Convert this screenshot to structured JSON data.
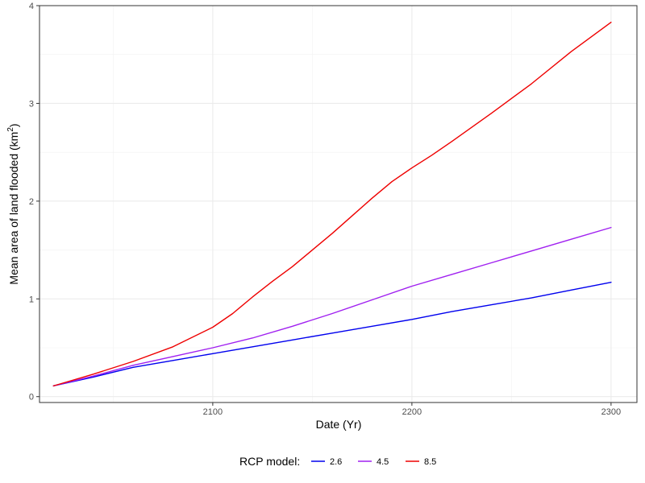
{
  "chart_data": {
    "type": "line",
    "title": "",
    "xlabel": "Date (Yr)",
    "ylabel": {
      "prefix": "Mean area of land flooded (km",
      "superscript": "2",
      "suffix": ")"
    },
    "xlim": [
      2013,
      2313
    ],
    "ylim": [
      -0.06,
      4.0
    ],
    "x_ticks": [
      2100,
      2200,
      2300
    ],
    "y_ticks": [
      0,
      1,
      2,
      3,
      4
    ],
    "x_tick_labels": [
      "2100",
      "2200",
      "2300"
    ],
    "y_tick_labels": [
      "0",
      "1",
      "2",
      "3",
      "4"
    ],
    "grid": true,
    "legend": {
      "title": "RCP model:",
      "position": "bottom"
    },
    "series": [
      {
        "name": "2.6",
        "color": "#0000ee",
        "x": [
          2020,
          2040,
          2060,
          2080,
          2100,
          2120,
          2140,
          2160,
          2180,
          2200,
          2220,
          2240,
          2260,
          2280,
          2300
        ],
        "y": [
          0.11,
          0.2,
          0.3,
          0.37,
          0.44,
          0.51,
          0.58,
          0.65,
          0.72,
          0.79,
          0.87,
          0.94,
          1.01,
          1.09,
          1.17
        ]
      },
      {
        "name": "4.5",
        "color": "#a020f0",
        "x": [
          2020,
          2040,
          2060,
          2080,
          2100,
          2120,
          2140,
          2160,
          2180,
          2200,
          2220,
          2240,
          2260,
          2280,
          2300
        ],
        "y": [
          0.11,
          0.21,
          0.32,
          0.41,
          0.5,
          0.6,
          0.72,
          0.85,
          0.99,
          1.13,
          1.25,
          1.37,
          1.49,
          1.61,
          1.73
        ]
      },
      {
        "name": "8.5",
        "color": "#ee0000",
        "x": [
          2020,
          2040,
          2060,
          2080,
          2100,
          2110,
          2120,
          2130,
          2140,
          2150,
          2160,
          2170,
          2180,
          2190,
          2200,
          2210,
          2220,
          2240,
          2260,
          2280,
          2300
        ],
        "y": [
          0.11,
          0.23,
          0.36,
          0.51,
          0.71,
          0.85,
          1.02,
          1.18,
          1.33,
          1.5,
          1.67,
          1.85,
          2.03,
          2.2,
          2.34,
          2.47,
          2.61,
          2.9,
          3.2,
          3.53,
          3.83
        ]
      }
    ]
  }
}
